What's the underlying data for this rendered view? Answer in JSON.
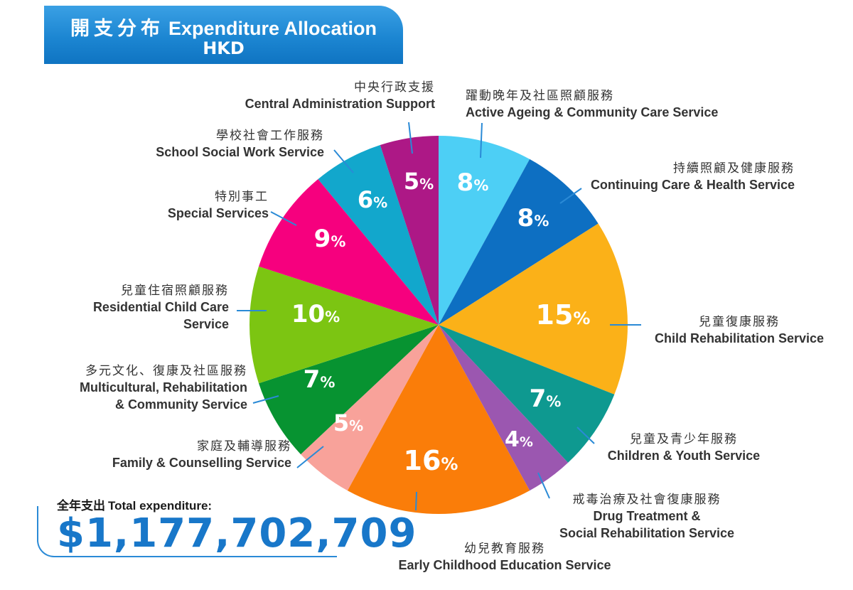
{
  "header": {
    "title_zh": "開支分布",
    "title_en": "Expenditure Allocation",
    "subtitle": "HKD"
  },
  "total": {
    "label_zh": "全年支出",
    "label_en": "Total expenditure:",
    "value": "$1,177,702,709"
  },
  "chart_data": {
    "type": "pie",
    "unit": "%",
    "slices": [
      {
        "label_zh": "躍動晚年及社區照顧服務",
        "label_en": [
          "Active Ageing & Community Care Service"
        ],
        "value": 8,
        "color": "#4dcff5"
      },
      {
        "label_zh": "持續照顧及健康服務",
        "label_en": [
          "Continuing Care & Health Service"
        ],
        "value": 8,
        "color": "#0d6fc2"
      },
      {
        "label_zh": "兒童復康服務",
        "label_en": [
          "Child Rehabilitation Service"
        ],
        "value": 15,
        "color": "#fbb118"
      },
      {
        "label_zh": "兒童及青少年服務",
        "label_en": [
          "Children & Youth Service"
        ],
        "value": 7,
        "color": "#0e9990"
      },
      {
        "label_zh": "戒毒治療及社會復康服務",
        "label_en": [
          "Drug Treatment &",
          "Social Rehabilitation Service"
        ],
        "value": 4,
        "color": "#9b57b0"
      },
      {
        "label_zh": "幼兒教育服務",
        "label_en": [
          "Early Childhood Education Service"
        ],
        "value": 16,
        "color": "#fa7d09"
      },
      {
        "label_zh": "家庭及輔導服務",
        "label_en": [
          "Family & Counselling Service"
        ],
        "value": 5,
        "color": "#f8a29a"
      },
      {
        "label_zh": "多元文化、復康及社區服務",
        "label_en": [
          "Multicultural, Rehabilitation",
          "& Community Service"
        ],
        "value": 7,
        "color": "#079331"
      },
      {
        "label_zh": "兒童住宿照顧服務",
        "label_en": [
          "Residential Child Care",
          "Service"
        ],
        "value": 10,
        "color": "#7cc512"
      },
      {
        "label_zh": "特別事工",
        "label_en": [
          "Special Services"
        ],
        "value": 9,
        "color": "#f6007e"
      },
      {
        "label_zh": "學校社會工作服務",
        "label_en": [
          "School Social Work Service"
        ],
        "value": 6,
        "color": "#12a7cc"
      },
      {
        "label_zh": "中央行政支援",
        "label_en": [
          "Central Administration Support"
        ],
        "value": 5,
        "color": "#ad1886"
      }
    ],
    "leader_line_color": "#2a8ad6"
  }
}
